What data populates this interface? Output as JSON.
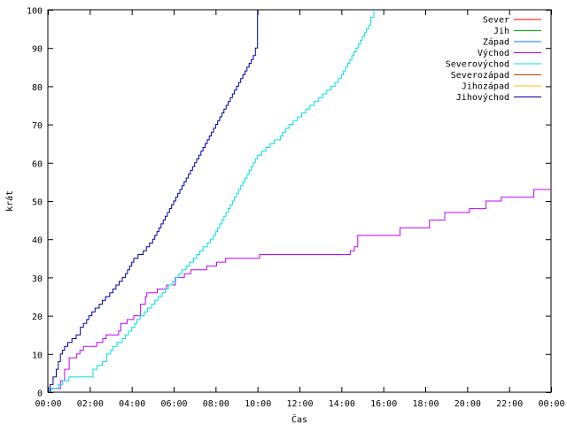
{
  "chart_data": {
    "type": "line",
    "title": "",
    "xlabel": "Čas",
    "ylabel": "krát",
    "xlim": [
      0,
      24
    ],
    "ylim": [
      0,
      100
    ],
    "grid": false,
    "legend_position": "top-right",
    "x_tick_labels": [
      "00:00",
      "02:00",
      "04:00",
      "06:00",
      "08:00",
      "10:00",
      "12:00",
      "14:00",
      "16:00",
      "18:00",
      "20:00",
      "22:00",
      "00:00"
    ],
    "y_ticks": [
      0,
      10,
      20,
      30,
      40,
      50,
      60,
      70,
      80,
      90,
      100
    ],
    "series": [
      {
        "name": "Sever",
        "color": "#ff0000",
        "x": [],
        "y": []
      },
      {
        "name": "Jih",
        "color": "#00c000",
        "x": [],
        "y": []
      },
      {
        "name": "Západ",
        "color": "#0080ff",
        "x": [],
        "y": []
      },
      {
        "name": "Východ",
        "color": "#c000ff",
        "step": true,
        "x": [
          0.0,
          0.14,
          0.6,
          0.8,
          1.02,
          1.15,
          1.37,
          1.53,
          1.7,
          1.98,
          2.33,
          2.62,
          2.78,
          3.12,
          3.37,
          3.48,
          3.78,
          3.88,
          4.1,
          4.42,
          4.65,
          4.72,
          4.92,
          5.22,
          5.6,
          5.66,
          6.08,
          6.24,
          6.51,
          6.82,
          7.2,
          7.58,
          8.05,
          8.48,
          8.68,
          9.77,
          10.1,
          14.08,
          14.42,
          14.62,
          14.78,
          16.8,
          18.2,
          18.93,
          20.1,
          20.9,
          21.62,
          23.18,
          24.0
        ],
        "y": [
          0,
          1,
          3,
          6,
          9,
          9,
          10,
          11,
          12,
          12,
          13,
          14,
          15,
          15,
          16,
          18,
          19,
          19,
          20,
          23,
          25,
          26,
          26,
          27,
          27,
          28,
          30,
          30,
          31,
          32,
          32,
          33,
          34,
          35,
          35,
          35,
          36,
          36,
          37,
          38,
          41,
          43,
          45,
          47,
          48,
          50,
          51,
          53,
          53
        ]
      },
      {
        "name": "Severovýchod",
        "color": "#00e0e0",
        "step": true,
        "x": [
          0.0,
          0.14,
          0.5,
          0.7,
          0.8,
          1.0,
          1.25,
          1.5,
          1.75,
          2.15,
          2.35,
          2.6,
          2.8,
          3.0,
          3.1,
          3.3,
          3.55,
          3.7,
          3.85,
          4.0,
          4.15,
          4.25,
          4.4,
          4.6,
          4.75,
          4.95,
          5.1,
          5.25,
          5.45,
          5.6,
          5.75,
          5.95,
          6.1,
          6.25,
          6.4,
          6.6,
          6.75,
          6.95,
          7.1,
          7.25,
          7.4,
          7.6,
          7.75,
          7.9,
          8.0,
          8.1,
          8.2,
          8.3,
          8.4,
          8.5,
          8.6,
          8.7,
          8.8,
          8.9,
          9.0,
          9.1,
          9.2,
          9.3,
          9.4,
          9.5,
          9.6,
          9.7,
          9.8,
          9.9,
          10.0,
          10.2,
          10.4,
          10.6,
          10.8,
          11.0,
          11.1,
          11.2,
          11.35,
          11.5,
          11.7,
          11.9,
          12.1,
          12.3,
          12.5,
          12.7,
          12.9,
          13.1,
          13.3,
          13.5,
          13.7,
          13.85,
          14.0,
          14.1,
          14.2,
          14.3,
          14.4,
          14.5,
          14.6,
          14.7,
          14.8,
          14.9,
          15.0,
          15.1,
          15.2,
          15.3,
          15.4,
          15.55
        ],
        "y": [
          0,
          1,
          2,
          3,
          3,
          4,
          4,
          4,
          4,
          6,
          7,
          8,
          10,
          11,
          12,
          13,
          14,
          15,
          16,
          17,
          18,
          19,
          20,
          21,
          22,
          23,
          24,
          25,
          26,
          27,
          28,
          29,
          30,
          31,
          32,
          33,
          34,
          35,
          36,
          37,
          38,
          39,
          40,
          41,
          42,
          43,
          44,
          45,
          46,
          47,
          48,
          49,
          50,
          51,
          52,
          53,
          54,
          55,
          56,
          57,
          58,
          59,
          60,
          61,
          62,
          63,
          64,
          65,
          66,
          66,
          67,
          68,
          69,
          70,
          71,
          72,
          73,
          74,
          75,
          76,
          77,
          78,
          79,
          80,
          81,
          82,
          83,
          84,
          85,
          86,
          87,
          88,
          89,
          90,
          91,
          92,
          93,
          94,
          95,
          96,
          98,
          100
        ]
      },
      {
        "name": "Severozápad",
        "color": "#c04000",
        "x": [],
        "y": []
      },
      {
        "name": "Jihozápad",
        "color": "#ffc000",
        "x": [],
        "y": []
      },
      {
        "name": "Jihovýchod",
        "color": "#0000a0",
        "step": true,
        "x": [
          0.0,
          0.1,
          0.25,
          0.4,
          0.5,
          0.6,
          0.7,
          0.8,
          0.95,
          1.15,
          1.35,
          1.55,
          1.7,
          1.85,
          1.95,
          2.1,
          2.25,
          2.45,
          2.6,
          2.75,
          2.95,
          3.1,
          3.25,
          3.4,
          3.55,
          3.7,
          3.8,
          3.9,
          4.0,
          4.1,
          4.3,
          4.55,
          4.7,
          4.85,
          5.0,
          5.1,
          5.2,
          5.3,
          5.4,
          5.5,
          5.6,
          5.7,
          5.8,
          5.9,
          6.0,
          6.1,
          6.2,
          6.3,
          6.4,
          6.5,
          6.6,
          6.7,
          6.8,
          6.9,
          7.0,
          7.1,
          7.2,
          7.3,
          7.4,
          7.5,
          7.6,
          7.7,
          7.8,
          7.9,
          8.0,
          8.1,
          8.2,
          8.3,
          8.4,
          8.5,
          8.6,
          8.7,
          8.8,
          8.9,
          9.0,
          9.1,
          9.2,
          9.3,
          9.4,
          9.5,
          9.6,
          9.7,
          9.8,
          9.9,
          10.0
        ],
        "y": [
          0,
          2,
          4,
          6,
          8,
          10,
          11,
          12,
          13,
          14,
          15,
          17,
          18,
          19,
          20,
          21,
          22,
          23,
          24,
          25,
          26,
          27,
          28,
          29,
          30,
          31,
          32,
          33,
          34,
          35,
          36,
          37,
          38,
          39,
          40,
          41,
          42,
          43,
          44,
          45,
          46,
          47,
          48,
          49,
          50,
          51,
          52,
          53,
          54,
          55,
          56,
          57,
          58,
          59,
          60,
          61,
          62,
          63,
          64,
          65,
          66,
          67,
          68,
          69,
          70,
          71,
          72,
          73,
          74,
          75,
          76,
          77,
          78,
          79,
          80,
          81,
          82,
          83,
          84,
          85,
          86,
          87,
          88,
          90,
          100
        ]
      }
    ]
  }
}
